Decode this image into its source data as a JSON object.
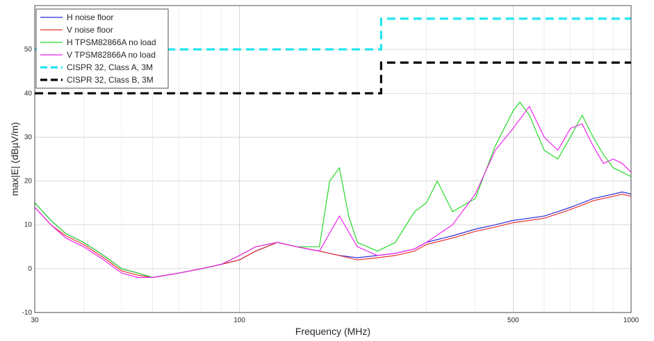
{
  "chart_data": {
    "type": "line",
    "title": "",
    "xlabel": "Frequency (MHz)",
    "ylabel": "max|E| (dBµV/m)",
    "x_scale": "log",
    "xlim": [
      30,
      1000
    ],
    "ylim": [
      -10,
      60
    ],
    "x_ticks": [
      {
        "value": 30,
        "label": "30"
      },
      {
        "value": 100,
        "label": "100"
      },
      {
        "value": 500,
        "label": "500"
      },
      {
        "value": 1000,
        "label": "1000"
      }
    ],
    "y_ticks": [
      {
        "value": -10,
        "label": "-10"
      },
      {
        "value": 0,
        "label": "0"
      },
      {
        "value": 10,
        "label": "10"
      },
      {
        "value": 20,
        "label": "20"
      },
      {
        "value": 30,
        "label": "30"
      },
      {
        "value": 40,
        "label": "40"
      },
      {
        "value": 50,
        "label": "50"
      }
    ],
    "grid": true,
    "legend_position": "top-left",
    "series": [
      {
        "name": "H noise floor",
        "color": "#2b2bd8",
        "style": "solid",
        "x": [
          30,
          33,
          36,
          40,
          45,
          50,
          55,
          60,
          70,
          80,
          90,
          100,
          110,
          125,
          140,
          160,
          180,
          200,
          225,
          250,
          280,
          300,
          350,
          400,
          450,
          500,
          550,
          600,
          650,
          700,
          750,
          800,
          850,
          900,
          950,
          1000
        ],
        "y": [
          15,
          11,
          8,
          6,
          3,
          0,
          -1,
          -2,
          -1,
          0,
          1,
          2,
          4,
          6,
          5,
          4,
          3,
          2.5,
          3,
          3.5,
          4.5,
          6,
          7.5,
          9,
          10,
          11,
          11.5,
          12,
          13,
          14,
          15,
          16,
          16.5,
          17,
          17.5,
          17
        ]
      },
      {
        "name": "V noise floor",
        "color": "#e8302c",
        "style": "solid",
        "x": [
          30,
          33,
          36,
          40,
          45,
          50,
          55,
          60,
          70,
          80,
          90,
          100,
          110,
          125,
          140,
          160,
          180,
          200,
          225,
          250,
          280,
          300,
          350,
          400,
          450,
          500,
          550,
          600,
          650,
          700,
          750,
          800,
          850,
          900,
          950,
          1000
        ],
        "y": [
          14,
          10,
          7.5,
          5.5,
          2.5,
          -0.5,
          -1.5,
          -2,
          -1,
          0,
          1,
          2,
          4,
          6,
          5,
          4,
          3,
          2,
          2.5,
          3,
          4,
          5.5,
          7,
          8.5,
          9.5,
          10.5,
          11,
          11.5,
          12.5,
          13.5,
          14.5,
          15.5,
          16,
          16.5,
          17,
          16.5
        ]
      },
      {
        "name": "H TPSM82866A no load",
        "color": "#26d926",
        "style": "solid",
        "x": [
          30,
          33,
          36,
          40,
          45,
          50,
          55,
          60,
          70,
          80,
          90,
          100,
          110,
          125,
          140,
          160,
          170,
          180,
          190,
          200,
          225,
          250,
          280,
          300,
          320,
          350,
          400,
          450,
          500,
          520,
          550,
          600,
          650,
          700,
          750,
          800,
          850,
          900,
          950,
          1000
        ],
        "y": [
          15,
          11,
          8,
          6,
          3,
          0,
          -1,
          -2,
          -1,
          0,
          1,
          3,
          5,
          6,
          5,
          5,
          20,
          23,
          12,
          6,
          4,
          6,
          13,
          15,
          20,
          13,
          16,
          28,
          36,
          38,
          35,
          27,
          25,
          30,
          35,
          30,
          26,
          23,
          22,
          21
        ]
      },
      {
        "name": "V TPSM82866A no load",
        "color": "#ee22ee",
        "style": "solid",
        "x": [
          30,
          33,
          36,
          40,
          45,
          50,
          55,
          60,
          70,
          80,
          90,
          100,
          110,
          125,
          140,
          160,
          180,
          200,
          225,
          250,
          280,
          300,
          350,
          400,
          450,
          500,
          550,
          600,
          650,
          700,
          750,
          800,
          850,
          900,
          950,
          1000
        ],
        "y": [
          14,
          10,
          7,
          5,
          2,
          -1,
          -2,
          -2,
          -1,
          0,
          1,
          3,
          5,
          6,
          5,
          4,
          12,
          5,
          3,
          3.5,
          4.5,
          6,
          10,
          17,
          27,
          32,
          37,
          30,
          27,
          32,
          33,
          28,
          24,
          25,
          24,
          22
        ]
      },
      {
        "name": "CISPR 32, Class A, 3M",
        "color": "#22e5f0",
        "style": "dashed",
        "x": [
          30,
          230,
          230,
          1000
        ],
        "y": [
          50,
          50,
          57,
          57
        ]
      },
      {
        "name": "CISPR 32, Class B, 3M",
        "color": "#000000",
        "style": "dashed",
        "x": [
          30,
          230,
          230,
          1000
        ],
        "y": [
          40,
          40,
          47,
          47
        ]
      }
    ]
  }
}
